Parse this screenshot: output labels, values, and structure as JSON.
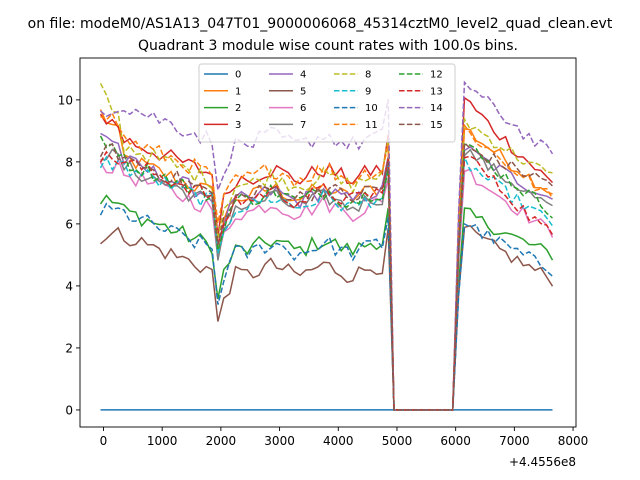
{
  "chart_data": {
    "type": "line",
    "suptitle": "on file: modeM0/AS1A13_047T01_9000006068_45314cztM0_level2_quad_clean.evt",
    "title": "Quadrant 3 module wise count rates with 100.0s bins.",
    "xlabel": "",
    "ylabel": "",
    "x_offset_label": "+4.4556e8",
    "xlim": [
      -400,
      8050
    ],
    "ylim": [
      -0.55,
      11.35
    ],
    "xticks": [
      0,
      1000,
      2000,
      3000,
      4000,
      5000,
      6000,
      7000,
      8000
    ],
    "xtick_labels": [
      "0",
      "1000",
      "2000",
      "3000",
      "4000",
      "5000",
      "6000",
      "7000",
      "8000"
    ],
    "yticks": [
      0,
      2,
      4,
      6,
      8,
      10
    ],
    "ytick_labels": [
      "0",
      "2",
      "4",
      "6",
      "8",
      "10"
    ],
    "x": [
      -50,
      50,
      150,
      250,
      350,
      450,
      550,
      650,
      750,
      850,
      950,
      1050,
      1150,
      1250,
      1350,
      1450,
      1550,
      1650,
      1750,
      1850,
      1950,
      2050,
      2150,
      2250,
      2350,
      2450,
      2550,
      2650,
      2750,
      2850,
      2950,
      3050,
      3150,
      3250,
      3350,
      3450,
      3550,
      3650,
      3750,
      3850,
      3950,
      4050,
      4150,
      4250,
      4350,
      4450,
      4550,
      4650,
      4750,
      4850,
      4950,
      5050,
      5150,
      5250,
      5350,
      5450,
      5550,
      5650,
      5750,
      5850,
      5950,
      6050,
      6150,
      6250,
      6350,
      6450,
      6550,
      6650,
      6750,
      6850,
      6950,
      7050,
      7150,
      7250,
      7350,
      7450,
      7550,
      7650
    ],
    "gap": {
      "start_index": 50,
      "end_index": 60
    },
    "series": [
      {
        "name": "0",
        "color": "#1f77b4",
        "dash": false,
        "profile": "zero",
        "start": 0,
        "level": 0,
        "end_start": 0,
        "end_end": 0
      },
      {
        "name": "1",
        "color": "#ff7f0e",
        "dash": false,
        "profile": "A",
        "start": 9.6,
        "level": 7.0,
        "end_start": 9.3,
        "end_end": 7.0
      },
      {
        "name": "2",
        "color": "#2ca02c",
        "dash": false,
        "profile": "B",
        "start": 6.8,
        "level": 5.3,
        "end_start": 6.5,
        "end_end": 5.0
      },
      {
        "name": "3",
        "color": "#d62728",
        "dash": false,
        "profile": "A",
        "start": 9.5,
        "level": 7.6,
        "end_start": 10.3,
        "end_end": 7.3
      },
      {
        "name": "4",
        "color": "#9467bd",
        "dash": false,
        "profile": "A",
        "start": 9.0,
        "level": 6.9,
        "end_start": 8.6,
        "end_end": 6.8
      },
      {
        "name": "5",
        "color": "#8c564b",
        "dash": false,
        "profile": "B",
        "start": 5.6,
        "level": 4.5,
        "end_start": 6.0,
        "end_end": 4.2
      },
      {
        "name": "6",
        "color": "#e377c2",
        "dash": false,
        "profile": "A",
        "start": 7.9,
        "level": 6.5,
        "end_start": 8.0,
        "end_end": 5.7
      },
      {
        "name": "7",
        "color": "#7f7f7f",
        "dash": false,
        "profile": "A",
        "start": 8.3,
        "level": 6.7,
        "end_start": 8.6,
        "end_end": 6.5
      },
      {
        "name": "8",
        "color": "#bcbd22",
        "dash": true,
        "profile": "A",
        "start": 10.3,
        "level": 7.4,
        "end_start": 9.5,
        "end_end": 7.5
      },
      {
        "name": "9",
        "color": "#17becf",
        "dash": true,
        "profile": "A",
        "start": 8.0,
        "level": 6.7,
        "end_start": 8.2,
        "end_end": 6.0
      },
      {
        "name": "10",
        "color": "#1f77b4",
        "dash": true,
        "profile": "B",
        "start": 6.4,
        "level": 5.2,
        "end_start": 6.2,
        "end_end": 4.5
      },
      {
        "name": "11",
        "color": "#ff7f0e",
        "dash": true,
        "profile": "A",
        "start": 9.7,
        "level": 7.6,
        "end_start": 9.3,
        "end_end": 6.8
      },
      {
        "name": "12",
        "color": "#2ca02c",
        "dash": true,
        "profile": "A",
        "start": 8.8,
        "level": 6.9,
        "end_start": 8.8,
        "end_end": 6.4
      },
      {
        "name": "13",
        "color": "#d62728",
        "dash": true,
        "profile": "A",
        "start": 8.1,
        "level": 6.9,
        "end_start": 8.6,
        "end_end": 5.6
      },
      {
        "name": "14",
        "color": "#9467bd",
        "dash": true,
        "profile": "A",
        "start": 9.7,
        "level": 8.7,
        "end_start": 10.8,
        "end_end": 8.2
      },
      {
        "name": "15",
        "color": "#8c564b",
        "dash": true,
        "profile": "A",
        "start": 8.4,
        "level": 7.0,
        "end_start": 8.6,
        "end_end": 7.3
      }
    ],
    "legend": {
      "placement": "upper-center",
      "columns": 4
    },
    "grid": false
  }
}
